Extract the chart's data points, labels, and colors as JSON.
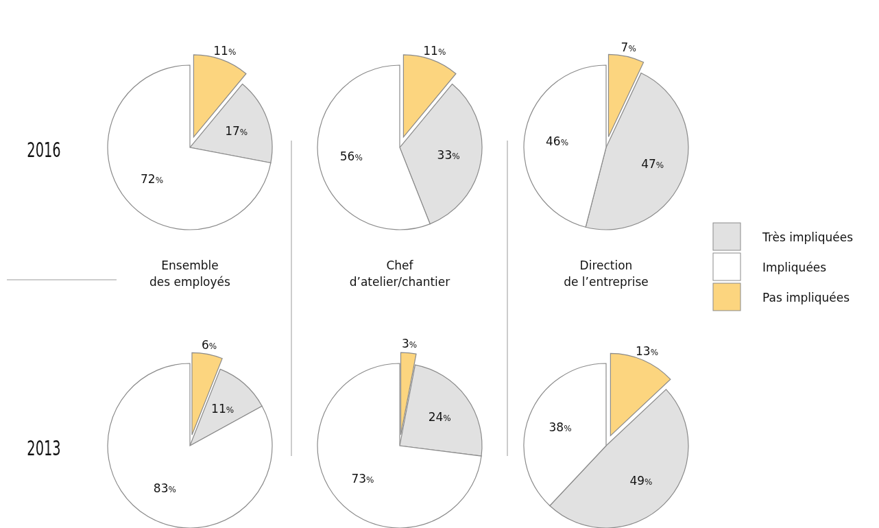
{
  "chart_data": [
    {
      "type": "pie",
      "title": "Ensemble des employés",
      "ylabel": "2016",
      "legend": "right",
      "categories": [
        "Très impliquées",
        "Impliquées",
        "Pas impliquées"
      ],
      "values": [
        17,
        72,
        11
      ],
      "value_labels": [
        "17%",
        "72%",
        "11%"
      ],
      "colors": [
        "#e1e1e1",
        "#ffffff",
        "#fcd57f"
      ]
    },
    {
      "type": "pie",
      "title": "Chef d’atelier/chantier",
      "values": [
        33,
        56,
        11
      ],
      "value_labels": [
        "33%",
        "56%",
        "11%"
      ],
      "colors": [
        "#e1e1e1",
        "#ffffff",
        "#fcd57f"
      ]
    },
    {
      "type": "pie",
      "title": "Direction de l’entreprise",
      "values": [
        47,
        46,
        7
      ],
      "value_labels": [
        "47%",
        "46%",
        "7%"
      ],
      "colors": [
        "#e1e1e1",
        "#ffffff",
        "#fcd57f"
      ]
    },
    {
      "type": "pie",
      "ylabel": "2013",
      "values": [
        11,
        83,
        6
      ],
      "value_labels": [
        "11%",
        "83%",
        "6%"
      ],
      "colors": [
        "#e1e1e1",
        "#ffffff",
        "#fcd57f"
      ]
    },
    {
      "type": "pie",
      "values": [
        24,
        73,
        3
      ],
      "value_labels": [
        "24%",
        "73%",
        "3%"
      ],
      "colors": [
        "#e1e1e1",
        "#ffffff",
        "#fcd57f"
      ]
    },
    {
      "type": "pie",
      "values": [
        49,
        38,
        13
      ],
      "value_labels": [
        "49%",
        "38%",
        "13%"
      ],
      "colors": [
        "#e1e1e1",
        "#ffffff",
        "#fcd57f"
      ]
    }
  ]
}
